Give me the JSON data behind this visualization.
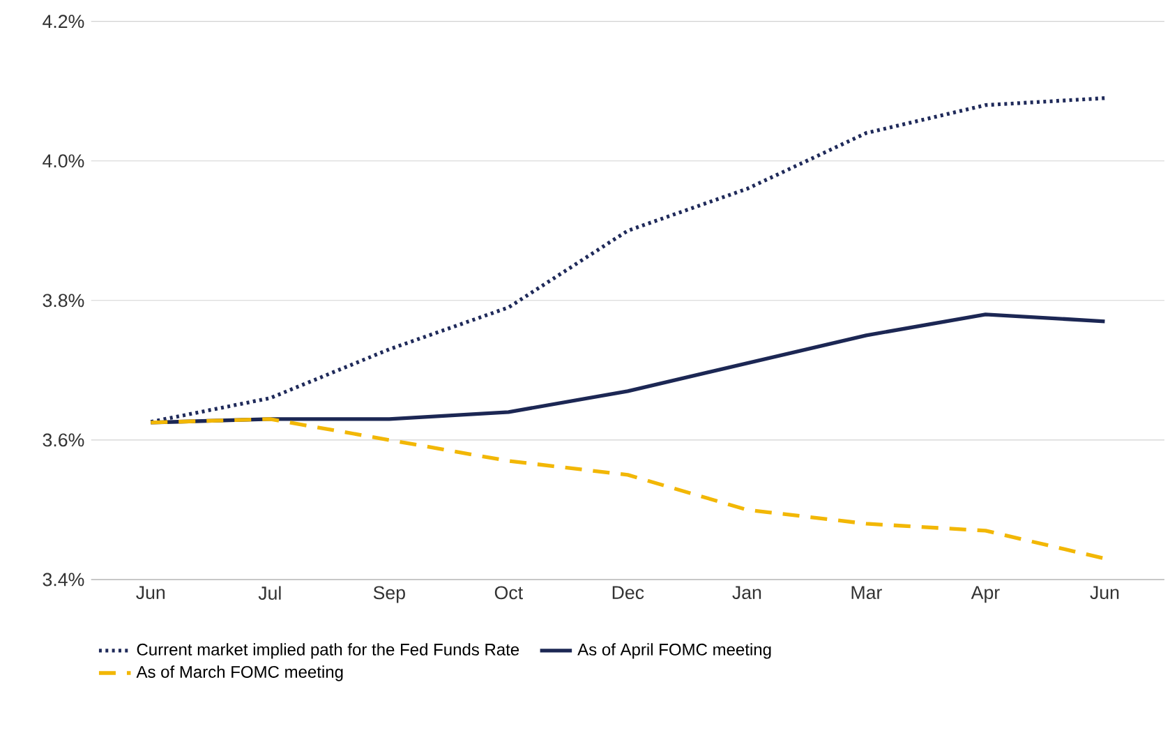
{
  "chart_data": {
    "type": "line",
    "categories": [
      "Jun",
      "Jul",
      "Sep",
      "Oct",
      "Dec",
      "Jan",
      "Mar",
      "Apr",
      "Jun"
    ],
    "series": [
      {
        "name": "Current market implied path for the Fed Funds Rate",
        "color": "#1f2a5a",
        "line_style": "dotted",
        "values": [
          3.626,
          3.66,
          3.73,
          3.79,
          3.9,
          3.96,
          4.04,
          4.08,
          4.09
        ]
      },
      {
        "name": "As of April FOMC meeting",
        "color": "#1c2754",
        "line_style": "solid",
        "values": [
          3.625,
          3.63,
          3.63,
          3.64,
          3.67,
          3.71,
          3.75,
          3.78,
          3.77
        ]
      },
      {
        "name": "As of March FOMC meeting",
        "color": "#f2b705",
        "line_style": "dashed",
        "values": [
          3.625,
          3.63,
          3.6,
          3.57,
          3.55,
          3.5,
          3.48,
          3.47,
          3.43
        ]
      }
    ],
    "ylim": [
      3.4,
      4.2
    ],
    "yticks": [
      {
        "value": 3.4,
        "label": "3.4%"
      },
      {
        "value": 3.6,
        "label": "3.6%"
      },
      {
        "value": 3.8,
        "label": "3.8%"
      },
      {
        "value": 4.0,
        "label": "4.0%"
      },
      {
        "value": 4.2,
        "label": "4.2%"
      }
    ],
    "grid": "y",
    "legend": "bottom",
    "marker": "none"
  }
}
